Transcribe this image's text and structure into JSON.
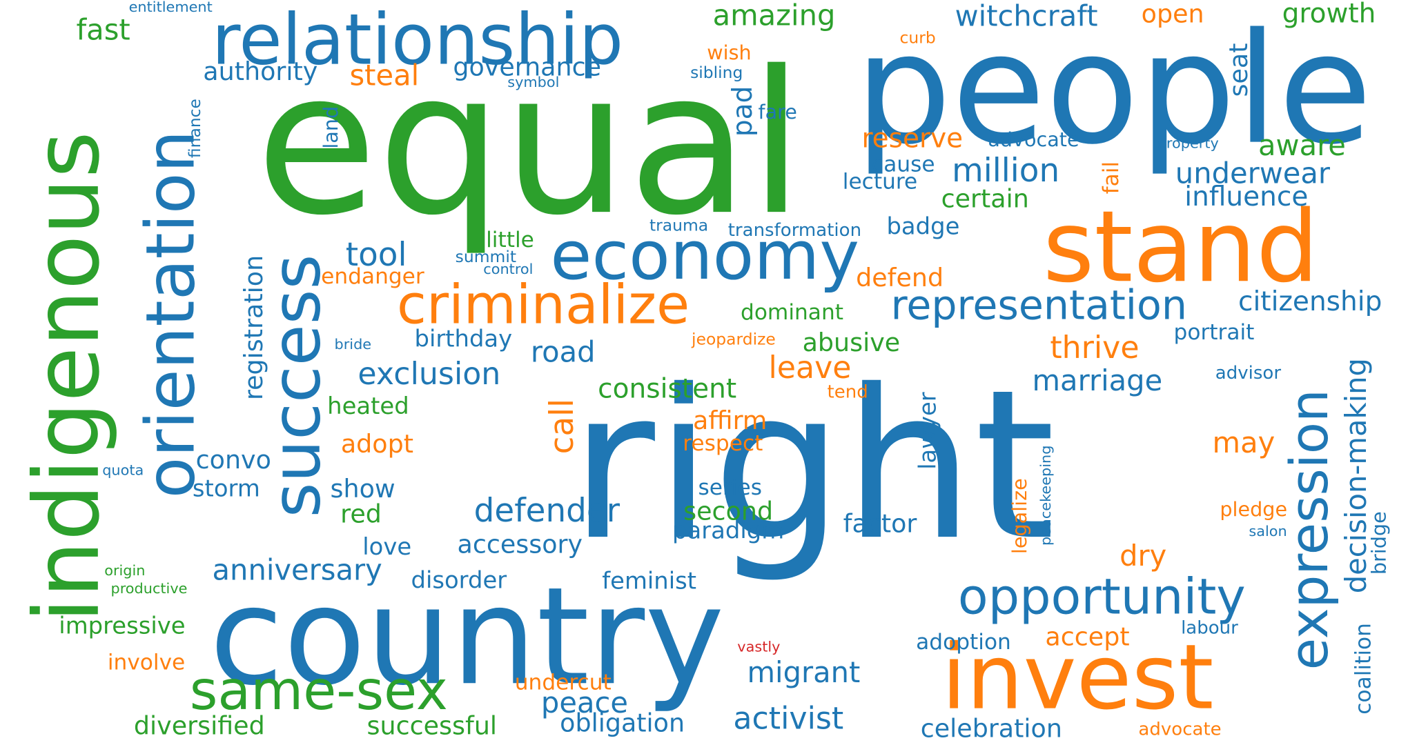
{
  "palette": {
    "blue": "#1f77b4",
    "green": "#2ca02c",
    "orange": "#ff7f0e",
    "red": "#d62728"
  },
  "words": [
    "right",
    "equal",
    "people",
    "country",
    "indigenous",
    "stand",
    "invest",
    "relationship",
    "orientation",
    "success",
    "economy",
    "criminalize",
    "same-sex",
    "expression",
    "opportunity",
    "representation",
    "decision-making",
    "registration",
    "witchcraft",
    "amazing",
    "entitlement",
    "fast",
    "growth",
    "open",
    "authority",
    "steal",
    "governance",
    "wish",
    "sibling",
    "symbol",
    "curb",
    "seat",
    "finance",
    "land",
    "pad",
    "fare",
    "reserve",
    "advocate",
    "property",
    "aware",
    "cause",
    "million",
    "lecture",
    "fail",
    "underwear",
    "certain",
    "influence",
    "trauma",
    "transformation",
    "badge",
    "little",
    "tool",
    "summit",
    "control",
    "endanger",
    "defend",
    "citizenship",
    "dominant",
    "bride",
    "jeopardize",
    "abusive",
    "birthday",
    "portrait",
    "thrive",
    "road",
    "exclusion",
    "leave",
    "advisor",
    "call",
    "consistent",
    "marriage",
    "tend",
    "heated",
    "affirm",
    "lawyer",
    "adopt",
    "respect",
    "may",
    "convo",
    "quota",
    "storm",
    "show",
    "series",
    "defender",
    "second",
    "red",
    "paradigm",
    "factor",
    "peacekeeping",
    "legalize",
    "pledge",
    "love",
    "accessory",
    "salon",
    "bridge",
    "anniversary",
    "dry",
    "origin",
    "disorder",
    "feminist",
    "productive",
    "impressive",
    "labour",
    "coalition",
    "adoption",
    "accept",
    "vastly",
    "involve",
    "migrant",
    "undercut",
    "peace",
    "diversified",
    "successful",
    "obligation",
    "activist",
    "celebration",
    "advocate"
  ]
}
